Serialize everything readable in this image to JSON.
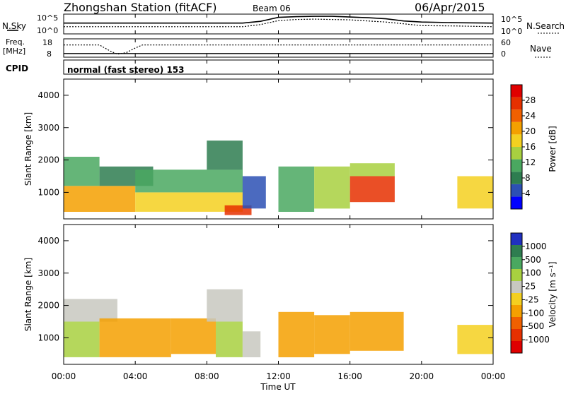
{
  "header": {
    "station": "Zhongshan Station (fitACF)",
    "beam": "Beam 06",
    "date": "06/Apr/2015"
  },
  "top_panels": {
    "nsky_label": "N.Sky",
    "nsearch_label": "N.Search",
    "nsky_ticks": [
      "10^5",
      "10^0"
    ],
    "nsearch_ticks": [
      "10^5",
      "10^0"
    ],
    "freq_label": "Freq.",
    "freq_unit": "[MHz]",
    "freq_ticks": [
      "18",
      "8"
    ],
    "nave_label": "Nave",
    "nave_ticks": [
      "60",
      "0"
    ],
    "cpid_label": "CPID",
    "cpid_text": "normal (fast stereo) 153"
  },
  "chart_data": [
    {
      "type": "line",
      "panel": "noise",
      "series": [
        {
          "name": "N.Sky",
          "x": [
            0,
            2,
            4,
            6,
            8,
            10,
            11,
            12,
            13,
            14,
            15,
            16,
            17,
            18,
            19,
            20,
            22,
            24
          ],
          "values": [
            3,
            3,
            3,
            3,
            3,
            3,
            3.5,
            4.6,
            4.8,
            4.9,
            4.9,
            4.7,
            4.5,
            4.2,
            3.6,
            3.3,
            3.1,
            3
          ]
        },
        {
          "name": "N.Search",
          "x": [
            0,
            2,
            4,
            6,
            8,
            10,
            11,
            12,
            13,
            14,
            15,
            16,
            17,
            18,
            19,
            20,
            22,
            24
          ],
          "values": [
            2,
            2,
            2,
            2,
            2,
            2,
            2.6,
            3.7,
            4,
            4.1,
            4,
            3.9,
            3.6,
            3.3,
            2.8,
            2.3,
            2.2,
            2
          ]
        }
      ],
      "xlim": [
        0,
        24
      ]
    },
    {
      "type": "line",
      "panel": "frequency",
      "series": [
        {
          "name": "Freq.",
          "x": [
            0,
            24
          ],
          "values": [
            10,
            10
          ]
        },
        {
          "name": "Nave",
          "x": [
            0,
            2,
            2.6,
            3,
            3.5,
            4,
            4.4,
            24
          ],
          "values": [
            40,
            40,
            20,
            10,
            15,
            30,
            40,
            40
          ]
        }
      ],
      "xlim": [
        0,
        24
      ]
    },
    {
      "type": "heatmap",
      "panel": "power",
      "ylabel": "Slant Range [km]",
      "yticks": [
        "1000",
        "2000",
        "3000",
        "4000"
      ],
      "ylim": [
        180,
        4500
      ],
      "xlim": [
        0,
        24
      ],
      "colorbar": {
        "label": "Power [dB]",
        "ticks": [
          "28",
          "24",
          "20",
          "16",
          "12",
          "8",
          "4"
        ],
        "colors": [
          "#0000ff",
          "#2c50b4",
          "#2e7d50",
          "#4aa860",
          "#a8d040",
          "#f4d020",
          "#f4a000",
          "#f06000",
          "#e63000",
          "#e00000"
        ]
      },
      "cells": [
        {
          "t0": 0.0,
          "t1": 4.0,
          "r0": 400,
          "r1": 1200,
          "v": 20
        },
        {
          "t0": 0.0,
          "t1": 2.0,
          "r0": 1200,
          "r1": 2100,
          "v": 10
        },
        {
          "t0": 2.0,
          "t1": 5.0,
          "r0": 1200,
          "r1": 1800,
          "v": 8
        },
        {
          "t0": 4.0,
          "t1": 10.0,
          "r0": 400,
          "r1": 1000,
          "v": 18
        },
        {
          "t0": 4.0,
          "t1": 10.0,
          "r0": 1000,
          "r1": 1700,
          "v": 12
        },
        {
          "t0": 8.0,
          "t1": 10.0,
          "r0": 1700,
          "r1": 2600,
          "v": 8
        },
        {
          "t0": 9.0,
          "t1": 10.5,
          "r0": 300,
          "r1": 600,
          "v": 26
        },
        {
          "t0": 10.0,
          "t1": 11.3,
          "r0": 500,
          "r1": 1500,
          "v": 6
        },
        {
          "t0": 12.0,
          "t1": 14.0,
          "r0": 400,
          "r1": 1800,
          "v": 12
        },
        {
          "t0": 14.0,
          "t1": 16.0,
          "r0": 500,
          "r1": 1800,
          "v": 14
        },
        {
          "t0": 16.0,
          "t1": 18.5,
          "r0": 700,
          "r1": 1500,
          "v": 26
        },
        {
          "t0": 16.0,
          "t1": 18.5,
          "r0": 1500,
          "r1": 1900,
          "v": 14
        },
        {
          "t0": 22.0,
          "t1": 24.0,
          "r0": 500,
          "r1": 1500,
          "v": 16
        }
      ]
    },
    {
      "type": "heatmap",
      "panel": "velocity",
      "ylabel": "Slant Range [km]",
      "yticks": [
        "1000",
        "2000",
        "3000",
        "4000"
      ],
      "ylim": [
        180,
        4500
      ],
      "xlim": [
        0,
        24
      ],
      "xticks": [
        "00:00",
        "04:00",
        "08:00",
        "12:00",
        "16:00",
        "20:00",
        "00:00"
      ],
      "xlabel": "Time UT",
      "colorbar": {
        "label": "Velocity [m s⁻¹]",
        "ticks": [
          "1000",
          "500",
          "100",
          "25",
          "-25",
          "-100",
          "-500",
          "-1000"
        ],
        "colors": [
          "#2030c0",
          "#2e7d50",
          "#4aa860",
          "#a8d040",
          "#c8c8c0",
          "#f4d020",
          "#f4a000",
          "#f06000",
          "#e63000",
          "#e00000"
        ]
      },
      "cells": [
        {
          "t0": 0.0,
          "t1": 2.0,
          "r0": 400,
          "r1": 1500,
          "v": 50
        },
        {
          "t0": 0.0,
          "t1": 3.0,
          "r0": 1500,
          "r1": 2200,
          "v": 0
        },
        {
          "t0": 2.0,
          "t1": 6.0,
          "r0": 400,
          "r1": 1600,
          "v": -200
        },
        {
          "t0": 6.0,
          "t1": 8.5,
          "r0": 500,
          "r1": 1600,
          "v": -300
        },
        {
          "t0": 8.5,
          "t1": 10.0,
          "r0": 400,
          "r1": 1500,
          "v": 40
        },
        {
          "t0": 8.0,
          "t1": 10.0,
          "r0": 1500,
          "r1": 2500,
          "v": 0
        },
        {
          "t0": 10.0,
          "t1": 11.0,
          "r0": 400,
          "r1": 1200,
          "v": 0
        },
        {
          "t0": 12.0,
          "t1": 14.0,
          "r0": 400,
          "r1": 1800,
          "v": -300
        },
        {
          "t0": 14.0,
          "t1": 16.0,
          "r0": 500,
          "r1": 1700,
          "v": -200
        },
        {
          "t0": 16.0,
          "t1": 19.0,
          "r0": 600,
          "r1": 1800,
          "v": -300
        },
        {
          "t0": 22.0,
          "t1": 24.0,
          "r0": 500,
          "r1": 1400,
          "v": -100
        }
      ]
    }
  ]
}
